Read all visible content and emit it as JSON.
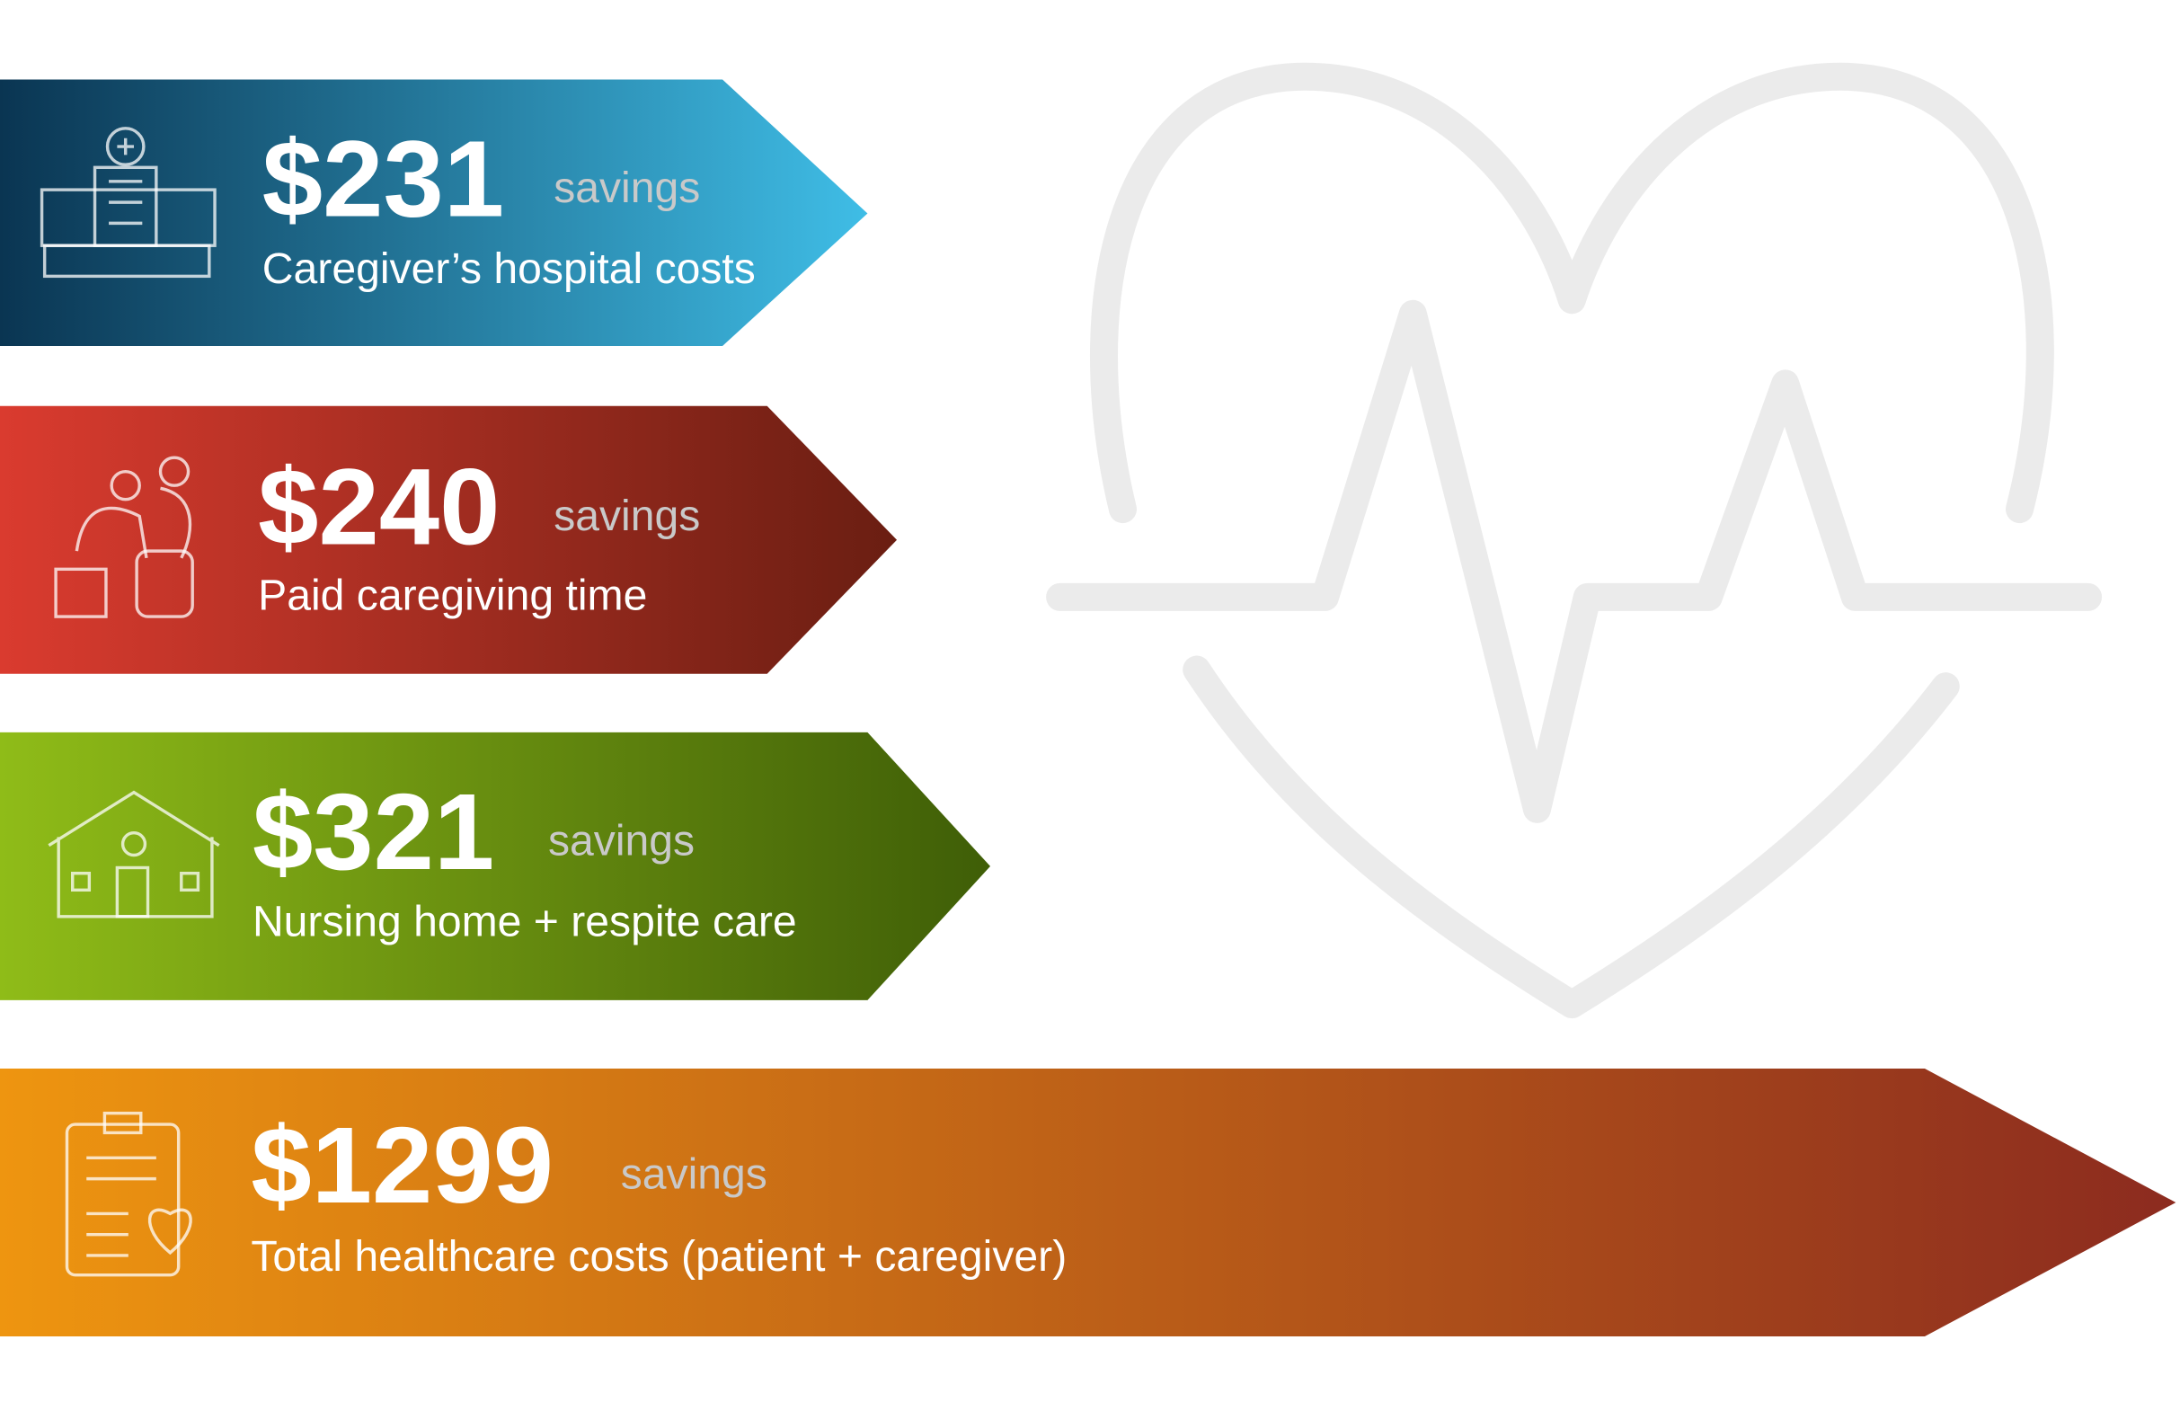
{
  "items": [
    {
      "amount": "$231",
      "unit": "savings",
      "label": "Caregiver’s hospital costs"
    },
    {
      "amount": "$240",
      "unit": "savings",
      "label": "Paid caregiving time"
    },
    {
      "amount": "$321",
      "unit": "savings",
      "label": "Nursing home + respite care"
    },
    {
      "amount": "$1299",
      "unit": "savings",
      "label": "Total healthcare costs (patient + caregiver)"
    }
  ]
}
